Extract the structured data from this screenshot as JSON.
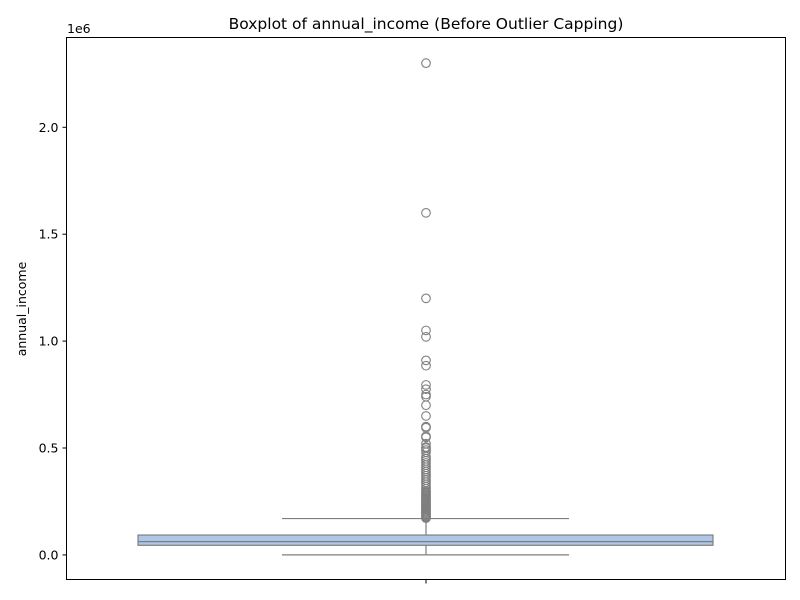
{
  "chart_data": {
    "type": "boxplot",
    "title": "Boxplot of annual_income (Before Outlier Capping)",
    "xlabel": "",
    "ylabel": "annual_income",
    "y_offset_label": "1e6",
    "y_scale": 1000000,
    "ylim": [
      -115000,
      2420000
    ],
    "y_ticks": [
      0,
      500000,
      1000000,
      1500000,
      2000000
    ],
    "y_tick_labels": [
      "0.0",
      "0.5",
      "1.0",
      "1.5",
      "2.0"
    ],
    "grid": false,
    "legend": "none",
    "box": {
      "whisker_low": 0,
      "q1": 45000,
      "median": 62000,
      "q3": 93000,
      "whisker_high": 170000,
      "fill_color": "#aec7e8",
      "line_color": "#7f7f7f"
    },
    "outliers": [
      2300000,
      1600000,
      1200000,
      1050000,
      1020000,
      910000,
      885000,
      795000,
      775000,
      750000,
      740000,
      700000,
      650000,
      600000,
      595000,
      555000,
      550000,
      520000,
      505000,
      500000,
      490000,
      480000,
      460000,
      450000,
      440000,
      430000,
      420000,
      410000,
      400000,
      390000,
      380000,
      370000,
      360000,
      350000,
      340000,
      330000,
      320000,
      310000,
      300000,
      295000,
      290000,
      285000,
      280000,
      275000,
      270000,
      265000,
      260000,
      255000,
      250000,
      245000,
      240000,
      235000,
      230000,
      225000,
      220000,
      215000,
      210000,
      205000,
      200000,
      195000,
      190000,
      185000,
      180000,
      176000,
      172000
    ]
  }
}
